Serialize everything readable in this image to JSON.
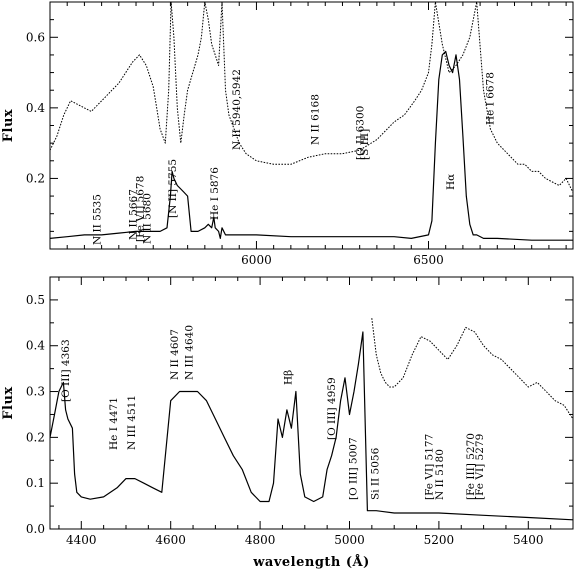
{
  "chart_data": [
    {
      "type": "line",
      "panel": "top",
      "title": "",
      "xlabel": "",
      "ylabel": "Flux",
      "xlim": [
        5400,
        6920
      ],
      "ylim": [
        0,
        0.7
      ],
      "x_ticks": [
        6000,
        6500
      ],
      "y_ticks": [
        0.2,
        0.4,
        0.6
      ],
      "grid": false,
      "series": [
        {
          "style": "dotted",
          "x": [
            5400,
            5420,
            5440,
            5460,
            5480,
            5500,
            5520,
            5540,
            5560,
            5580,
            5600,
            5620,
            5640,
            5660,
            5680,
            5700,
            5710,
            5720,
            5735,
            5745,
            5752,
            5760,
            5770,
            5780,
            5790,
            5800,
            5815,
            5830,
            5840,
            5850,
            5860,
            5870,
            5880,
            5890,
            5900,
            5910,
            5920,
            5935,
            5950,
            5970,
            6000,
            6050,
            6100,
            6150,
            6200,
            6250,
            6300,
            6350,
            6400,
            6430,
            6460,
            6480,
            6500,
            6510,
            6520,
            6540,
            6560,
            6580,
            6600,
            6620,
            6640,
            6660,
            6680,
            6700,
            6720,
            6740,
            6760,
            6780,
            6800,
            6820,
            6840,
            6860,
            6880,
            6900,
            6920
          ],
          "y": [
            0.28,
            0.32,
            0.38,
            0.42,
            0.41,
            0.4,
            0.39,
            0.41,
            0.43,
            0.45,
            0.47,
            0.5,
            0.53,
            0.55,
            0.52,
            0.46,
            0.4,
            0.34,
            0.3,
            0.45,
            0.7,
            0.6,
            0.4,
            0.3,
            0.38,
            0.45,
            0.5,
            0.55,
            0.6,
            0.7,
            0.65,
            0.58,
            0.55,
            0.52,
            0.7,
            0.45,
            0.38,
            0.34,
            0.3,
            0.27,
            0.25,
            0.24,
            0.24,
            0.26,
            0.27,
            0.27,
            0.28,
            0.31,
            0.36,
            0.38,
            0.42,
            0.45,
            0.5,
            0.58,
            0.7,
            0.58,
            0.5,
            0.52,
            0.55,
            0.6,
            0.7,
            0.45,
            0.34,
            0.3,
            0.28,
            0.26,
            0.24,
            0.24,
            0.22,
            0.22,
            0.2,
            0.19,
            0.18,
            0.2,
            0.16
          ]
        },
        {
          "style": "solid",
          "x": [
            5400,
            5450,
            5500,
            5550,
            5600,
            5650,
            5700,
            5720,
            5740,
            5750,
            5755,
            5760,
            5770,
            5780,
            5790,
            5800,
            5810,
            5830,
            5850,
            5860,
            5870,
            5876,
            5880,
            5890,
            5895,
            5900,
            5910,
            5950,
            6000,
            6100,
            6200,
            6300,
            6400,
            6450,
            6500,
            6510,
            6520,
            6530,
            6540,
            6550,
            6560,
            6570,
            6580,
            6590,
            6600,
            6610,
            6620,
            6630,
            6640,
            6660,
            6700,
            6800,
            6920
          ],
          "y": [
            0.03,
            0.035,
            0.04,
            0.04,
            0.045,
            0.05,
            0.05,
            0.05,
            0.06,
            0.15,
            0.22,
            0.2,
            0.18,
            0.17,
            0.16,
            0.15,
            0.05,
            0.05,
            0.06,
            0.07,
            0.06,
            0.09,
            0.06,
            0.05,
            0.03,
            0.06,
            0.04,
            0.04,
            0.04,
            0.035,
            0.035,
            0.035,
            0.035,
            0.03,
            0.04,
            0.08,
            0.3,
            0.48,
            0.55,
            0.56,
            0.52,
            0.5,
            0.55,
            0.48,
            0.32,
            0.15,
            0.07,
            0.04,
            0.04,
            0.03,
            0.03,
            0.025,
            0.025
          ]
        }
      ]
    },
    {
      "type": "line",
      "panel": "bottom",
      "title": "",
      "xlabel": "wavelength (Å)",
      "ylabel": "Flux",
      "xlim": [
        4330,
        5500
      ],
      "ylim": [
        0,
        0.55
      ],
      "x_ticks": [
        4400,
        4600,
        4800,
        5000,
        5200,
        5400
      ],
      "y_ticks": [
        0,
        0.1,
        0.2,
        0.3,
        0.4,
        0.5
      ],
      "grid": false,
      "series": [
        {
          "style": "solid",
          "x": [
            4330,
            4340,
            4350,
            4360,
            4365,
            4370,
            4380,
            4385,
            4390,
            4400,
            4420,
            4450,
            4480,
            4500,
            4520,
            4540,
            4560,
            4580,
            4600,
            4620,
            4640,
            4660,
            4680,
            4700,
            4720,
            4740,
            4760,
            4780,
            4800,
            4820,
            4830,
            4840,
            4850,
            4860,
            4870,
            4880,
            4890,
            4900,
            4920,
            4940,
            4950,
            4960,
            4970,
            4980,
            4990,
            5000,
            5010,
            5020,
            5030,
            5040,
            5060,
            5100,
            5200,
            5300,
            5400,
            5500
          ],
          "y": [
            0.2,
            0.25,
            0.3,
            0.32,
            0.26,
            0.24,
            0.22,
            0.12,
            0.08,
            0.07,
            0.065,
            0.07,
            0.09,
            0.11,
            0.11,
            0.1,
            0.09,
            0.08,
            0.28,
            0.3,
            0.3,
            0.3,
            0.28,
            0.24,
            0.2,
            0.16,
            0.13,
            0.08,
            0.06,
            0.06,
            0.1,
            0.24,
            0.2,
            0.26,
            0.22,
            0.3,
            0.12,
            0.07,
            0.06,
            0.07,
            0.13,
            0.16,
            0.2,
            0.28,
            0.33,
            0.25,
            0.3,
            0.36,
            0.43,
            0.04,
            0.04,
            0.035,
            0.035,
            0.03,
            0.025,
            0.02
          ]
        },
        {
          "style": "dotted",
          "x": [
            5050,
            5060,
            5070,
            5080,
            5090,
            5100,
            5120,
            5140,
            5160,
            5180,
            5200,
            5220,
            5240,
            5260,
            5280,
            5300,
            5320,
            5340,
            5360,
            5380,
            5400,
            5420,
            5440,
            5460,
            5480,
            5500
          ],
          "y": [
            0.46,
            0.38,
            0.34,
            0.32,
            0.31,
            0.31,
            0.33,
            0.38,
            0.42,
            0.41,
            0.39,
            0.37,
            0.4,
            0.44,
            0.43,
            0.4,
            0.38,
            0.37,
            0.35,
            0.33,
            0.31,
            0.32,
            0.3,
            0.28,
            0.27,
            0.24
          ]
        }
      ]
    }
  ],
  "annotations": {
    "top": [
      {
        "text": "N II 5535",
        "x": 5535
      },
      {
        "text": "N II 5667",
        "x": 5640
      },
      {
        "text": "[Fe VI] 5678",
        "x": 5660
      },
      {
        "text": "N II 5680",
        "x": 5680
      },
      {
        "text": "[N II] 5755",
        "x": 5755
      },
      {
        "text": "He I 5876",
        "x": 5876
      },
      {
        "text": "N II 5940,5942",
        "x": 5941
      },
      {
        "text": "N II 6168",
        "x": 6168
      },
      {
        "text": "[O I] 6300",
        "x": 6300
      },
      {
        "text": "[S III]",
        "x": 6312
      },
      {
        "text": "Hα",
        "x": 6563
      },
      {
        "text": "He I 6678",
        "x": 6678
      }
    ],
    "bottom": [
      {
        "text": "[O III] 4363",
        "x": 4363
      },
      {
        "text": "He I 4471",
        "x": 4471
      },
      {
        "text": "N III 4511",
        "x": 4511
      },
      {
        "text": "N II 4607",
        "x": 4607
      },
      {
        "text": "N III 4640",
        "x": 4640
      },
      {
        "text": "Hβ",
        "x": 4861
      },
      {
        "text": "[O III] 4959",
        "x": 4959
      },
      {
        "text": "[O III] 5007",
        "x": 5007
      },
      {
        "text": "Si II 5056",
        "x": 5056
      },
      {
        "text": "[Fe VI] 5177",
        "x": 5177
      },
      {
        "text": "N II 5180",
        "x": 5200
      },
      {
        "text": "[Fe III] 5270",
        "x": 5270
      },
      {
        "text": "[Fe VI] 5279",
        "x": 5290
      }
    ]
  }
}
